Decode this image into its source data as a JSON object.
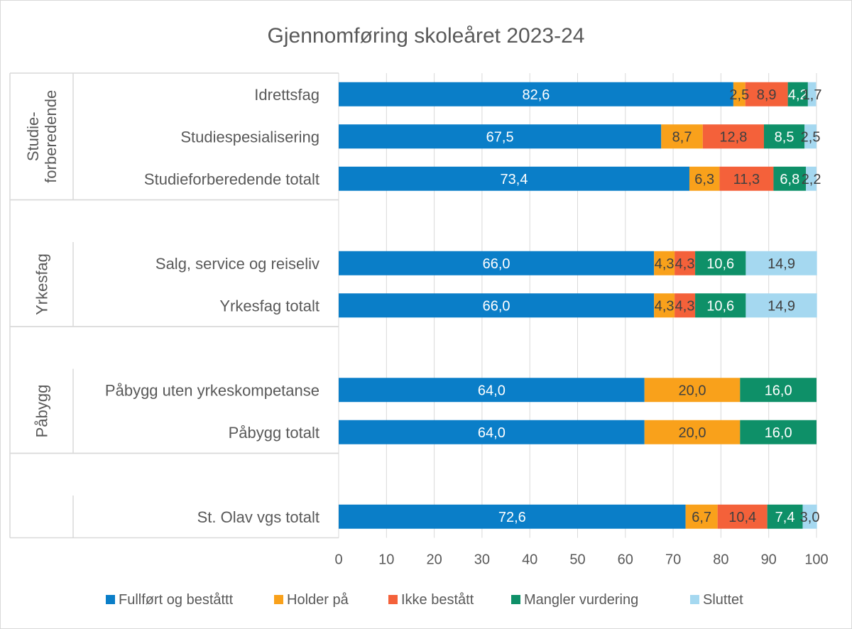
{
  "chart_data": {
    "type": "bar",
    "orientation": "horizontal",
    "stacked": true,
    "title": "Gjennomføring skoleåret 2023-24",
    "xlim": [
      0,
      100
    ],
    "xticks": [
      0,
      10,
      20,
      30,
      40,
      50,
      60,
      70,
      80,
      90,
      100
    ],
    "grid": "vertical",
    "legend_position": "bottom",
    "groups": [
      {
        "label": "Studie-\nforberedende",
        "categories": [
          "Idrettsfag",
          "Studiespesialisering",
          "Studieforberedende totalt"
        ]
      },
      {
        "label": "Yrkesfag",
        "categories": [
          "Salg, service og reiseliv",
          "Yrkesfag totalt"
        ]
      },
      {
        "label": "Påbygg",
        "categories": [
          "Påbygg uten yrkeskompetanse",
          "Påbygg totalt"
        ]
      },
      {
        "label": "",
        "categories": [
          "St. Olav vgs totalt"
        ]
      }
    ],
    "categories": [
      "Idrettsfag",
      "Studiespesialisering",
      "Studieforberedende totalt",
      "Salg, service og reiseliv",
      "Yrkesfag totalt",
      "Påbygg uten yrkeskompetanse",
      "Påbygg totalt",
      "St. Olav vgs totalt"
    ],
    "series": [
      {
        "name": "Fullført og beståttt",
        "color": "#0a7ec8",
        "label_color": "#ffffff",
        "values": [
          82.6,
          67.5,
          73.4,
          66.0,
          66.0,
          64.0,
          64.0,
          72.6
        ],
        "labels": [
          "82,6",
          "67,5",
          "73,4",
          "66,0",
          "66,0",
          "64,0",
          "64,0",
          "72,6"
        ]
      },
      {
        "name": "Holder på",
        "color": "#f9a11b",
        "label_color": "#404040",
        "values": [
          2.5,
          8.7,
          6.3,
          4.3,
          4.3,
          20.0,
          20.0,
          6.7
        ],
        "labels": [
          "2,5",
          "8,7",
          "6,3",
          "4,3",
          "4,3",
          "20,0",
          "20,0",
          "6,7"
        ]
      },
      {
        "name": "Ikke bestått",
        "color": "#f4613a",
        "label_color": "#404040",
        "values": [
          8.9,
          12.8,
          11.3,
          4.3,
          4.3,
          null,
          null,
          10.4
        ],
        "labels": [
          "8,9",
          "12,8",
          "11,3",
          "4,3",
          "4,3",
          "",
          "",
          "10,4"
        ]
      },
      {
        "name": "Mangler vurdering",
        "color": "#0e9068",
        "label_color": "#ffffff",
        "values": [
          4.2,
          8.5,
          6.8,
          10.6,
          10.6,
          16.0,
          16.0,
          7.4
        ],
        "labels": [
          "4,2",
          "8,5",
          "6,8",
          "10,6",
          "10,6",
          "16,0",
          "16,0",
          "7,4"
        ]
      },
      {
        "name": "Sluttet",
        "color": "#a5d8f0",
        "label_color": "#404040",
        "values": [
          1.7,
          2.5,
          2.2,
          14.9,
          14.9,
          null,
          null,
          3.0
        ],
        "labels": [
          "1,7",
          "2,5",
          "2,2",
          "14,9",
          "14,9",
          "",
          "",
          "3,0"
        ]
      }
    ]
  }
}
